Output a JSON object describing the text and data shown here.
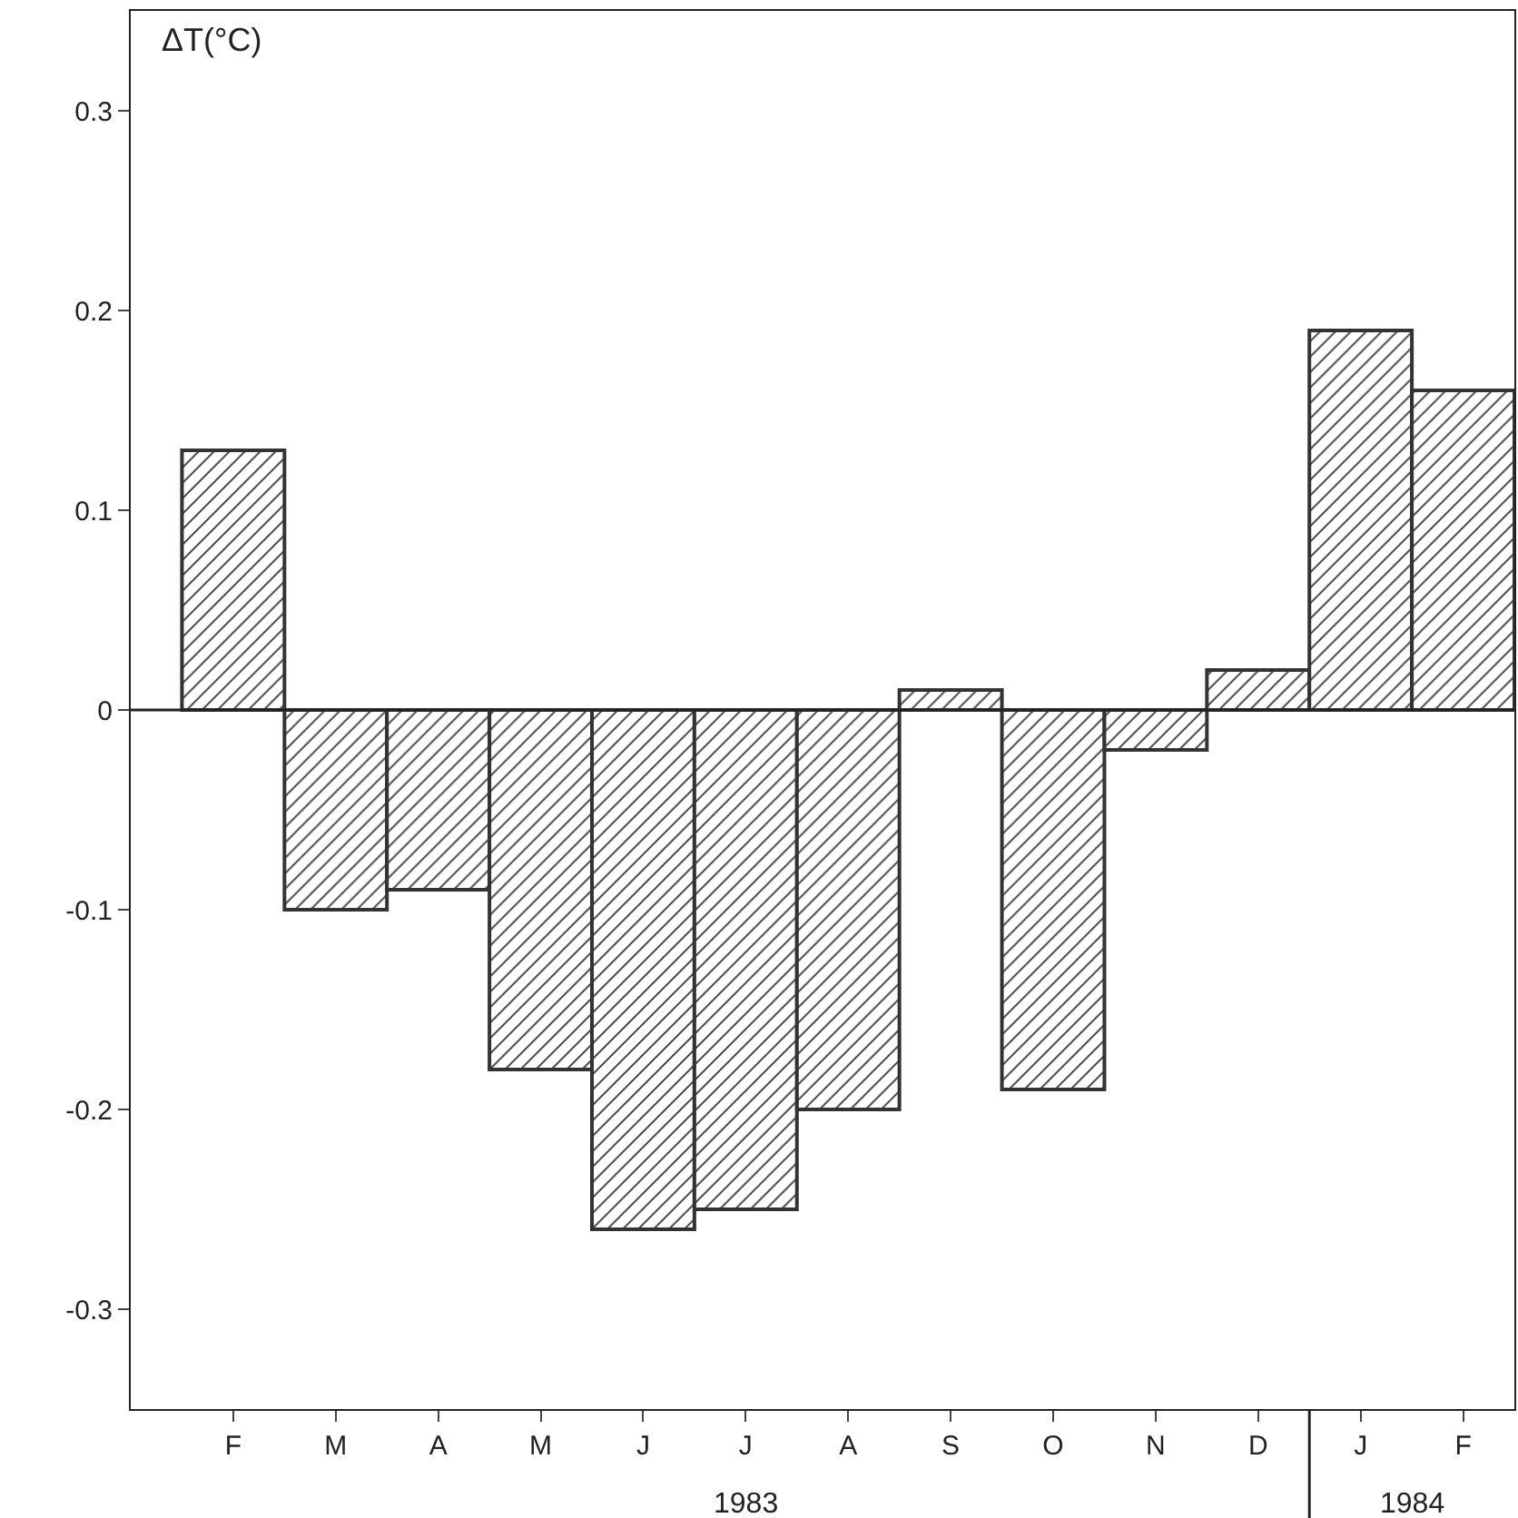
{
  "chart_data": {
    "type": "bar",
    "ylabel": "ΔT(°C)",
    "categories": [
      "F",
      "M",
      "A",
      "M",
      "J",
      "J",
      "A",
      "S",
      "O",
      "N",
      "D",
      "J",
      "F"
    ],
    "values": [
      0.13,
      -0.1,
      -0.09,
      -0.18,
      -0.26,
      -0.25,
      -0.2,
      0.01,
      -0.19,
      -0.02,
      0.02,
      0.19,
      0.16
    ],
    "color": "#333333",
    "ylim": [
      -0.35,
      0.35
    ],
    "yticks": [
      {
        "value": -0.3,
        "label": "-0.3"
      },
      {
        "value": -0.2,
        "label": "-0.2"
      },
      {
        "value": -0.1,
        "label": "-0.1"
      },
      0,
      0.1,
      0.2,
      0.3
    ],
    "grid": false,
    "legend": false,
    "ref_lines": [
      {
        "axis": "y",
        "value": 0,
        "color": "#222222"
      }
    ],
    "annotations": [
      "1983",
      "1984"
    ]
  }
}
